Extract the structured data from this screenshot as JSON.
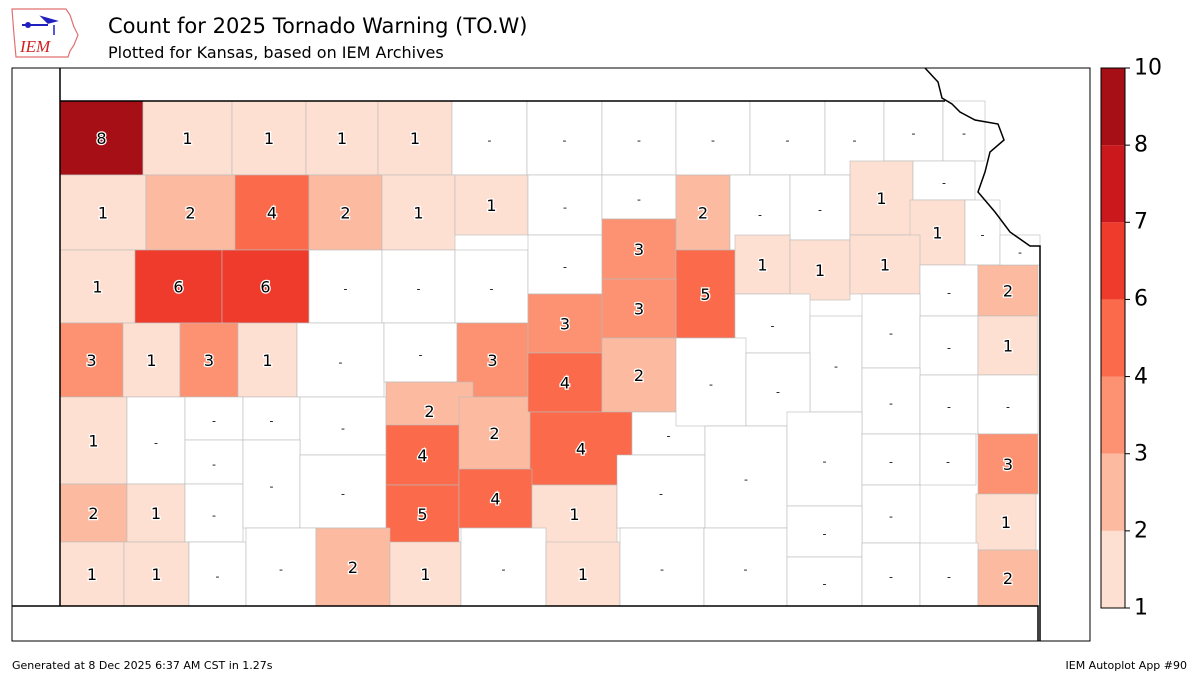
{
  "header": {
    "title": "Count for 2025 Tornado Warning (TO.W)",
    "subtitle": "Plotted for Kansas, based on IEM Archives",
    "logo_text": "IEM"
  },
  "footer": {
    "generated": "Generated at 8 Dec 2025 6:37 AM CST in 1.27s",
    "app": "IEM Autoplot App #90"
  },
  "colorbar": {
    "ticks": [
      "1",
      "2",
      "3",
      "4",
      "6",
      "7",
      "8",
      "10"
    ],
    "bounds": [
      1,
      2,
      3,
      4,
      6,
      7,
      8,
      10
    ],
    "colors": [
      "#fee0d2",
      "#fcbba1",
      "#fc9272",
      "#fb6a4a",
      "#ef3b2c",
      "#cb181d",
      "#a50f15"
    ]
  },
  "counties": [
    "8",
    "1",
    "1",
    "1",
    "1",
    "-",
    "-",
    "-",
    "-",
    "-",
    "-",
    "-",
    "-",
    "1",
    "2",
    "4",
    "2",
    "1",
    "1",
    "-",
    "-",
    "2",
    "-",
    "-",
    "1",
    "-",
    "1",
    "-",
    "1",
    "6",
    "6",
    "-",
    "-",
    "-",
    "-",
    "3",
    "5",
    "1",
    "1",
    "1",
    "-",
    "2",
    "-",
    "3",
    "1",
    "3",
    "1",
    "-",
    "-",
    "3",
    "3",
    "3",
    "-",
    "-",
    "-",
    "-",
    "1",
    "1",
    "-",
    "-",
    "-",
    "-",
    "2",
    "2",
    "4",
    "2",
    "4",
    "-",
    "-",
    "-",
    "-",
    "-",
    "-",
    "-",
    "3",
    "2",
    "1",
    "-",
    "-",
    "-",
    "4",
    "5",
    "4",
    "1",
    "-",
    "-",
    "-",
    "-",
    "-",
    "-",
    "1",
    "1",
    "1",
    "-",
    "-",
    "2",
    "1",
    "-",
    "1",
    "-",
    "-",
    "-",
    "-",
    "-",
    "-",
    "2"
  ]
}
